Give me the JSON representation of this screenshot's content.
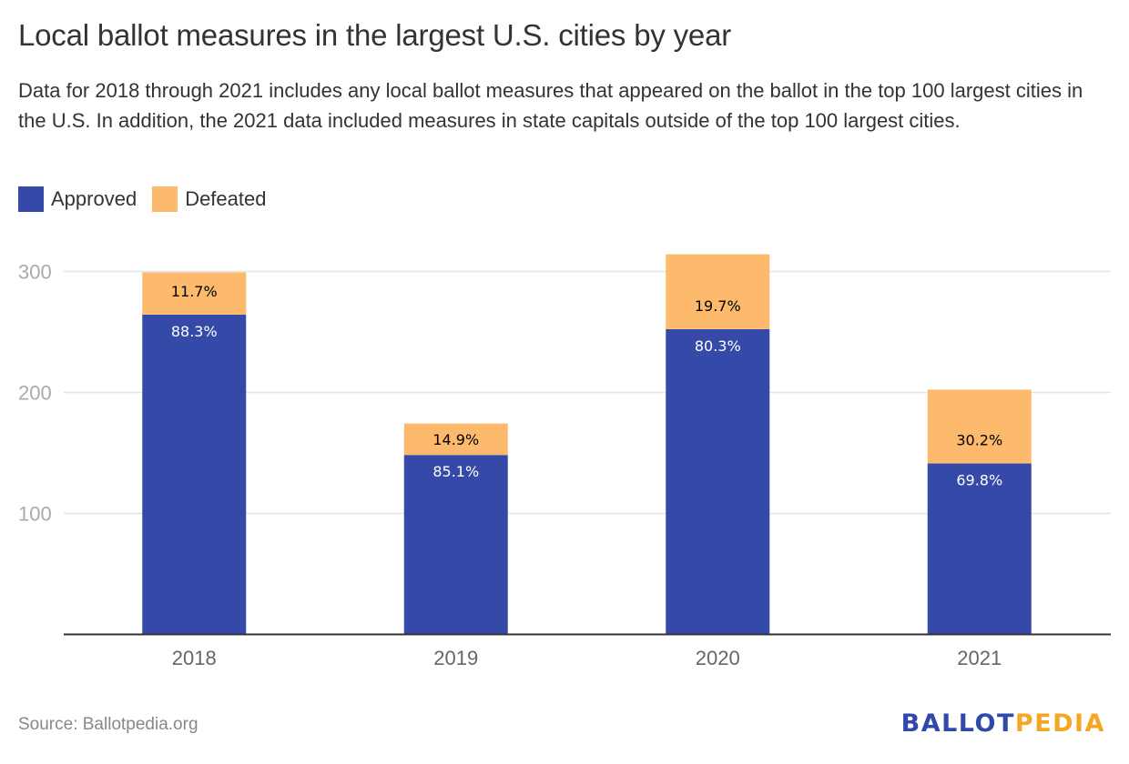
{
  "colors": {
    "approved": "#354aa8",
    "defeated": "#fdb96c",
    "grid": "#e5e5e5",
    "axis": "#333333",
    "logo_primary": "#3149a8",
    "logo_accent": "#f5a623"
  },
  "header": {
    "title": "Local ballot measures in the largest U.S. cities by year",
    "subtitle": "Data for 2018 through 2021 includes any local ballot measures that appeared on the ballot in the top 100 largest cities in the U.S. In addition, the 2021 data included measures in state capitals outside of the top 100 largest cities."
  },
  "legend": [
    {
      "label": "Approved",
      "color_key": "approved"
    },
    {
      "label": "Defeated",
      "color_key": "defeated"
    }
  ],
  "footer": {
    "source": "Source: Ballotpedia.org",
    "logo_part1": "BALLOT",
    "logo_part2": "PEDIA"
  },
  "chart_data": {
    "type": "bar",
    "stacked": true,
    "title": "Local ballot measures in the largest U.S. cities by year",
    "xlabel": "",
    "ylabel": "",
    "categories": [
      "2018",
      "2019",
      "2020",
      "2021"
    ],
    "series": [
      {
        "name": "Approved",
        "values": [
          264,
          148,
          252,
          141
        ],
        "labels": [
          "88.3%",
          "85.1%",
          "80.3%",
          "69.8%"
        ]
      },
      {
        "name": "Defeated",
        "values": [
          35,
          26,
          62,
          61
        ],
        "labels": [
          "11.7%",
          "14.9%",
          "19.7%",
          "30.2%"
        ]
      }
    ],
    "ylim": [
      0,
      300
    ],
    "yticks": [
      100,
      200,
      300
    ],
    "grid": true,
    "legend_position": "top-left"
  }
}
